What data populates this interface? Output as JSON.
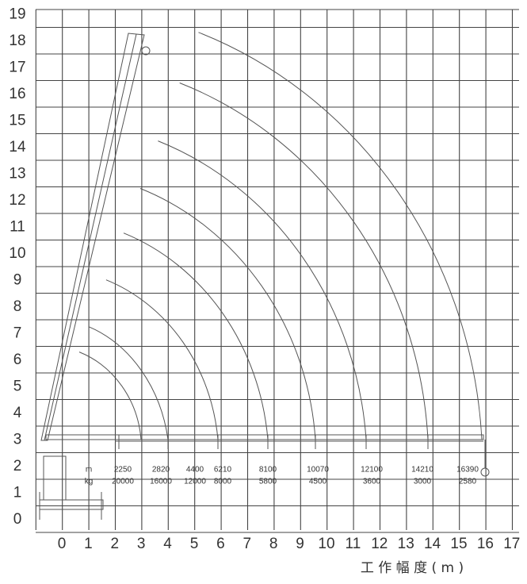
{
  "y_axis": {
    "labels": [
      0,
      1,
      2,
      3,
      4,
      5,
      6,
      7,
      8,
      9,
      10,
      11,
      12,
      13,
      14,
      15,
      16,
      17,
      18,
      19
    ]
  },
  "x_axis": {
    "labels": [
      0,
      1,
      2,
      3,
      4,
      5,
      6,
      7,
      8,
      9,
      10,
      11,
      12,
      13,
      14,
      15,
      16,
      17
    ],
    "title": "工 作 幅 度 ( m )"
  },
  "load_table": {
    "radius_unit": "m",
    "load_unit": "kg",
    "radius": [
      2250,
      2820,
      4400,
      6210,
      8100,
      10070,
      12100,
      14210,
      16390
    ],
    "load": [
      20000,
      16000,
      12000,
      8000,
      5800,
      4500,
      3600,
      3000,
      2580
    ]
  }
}
